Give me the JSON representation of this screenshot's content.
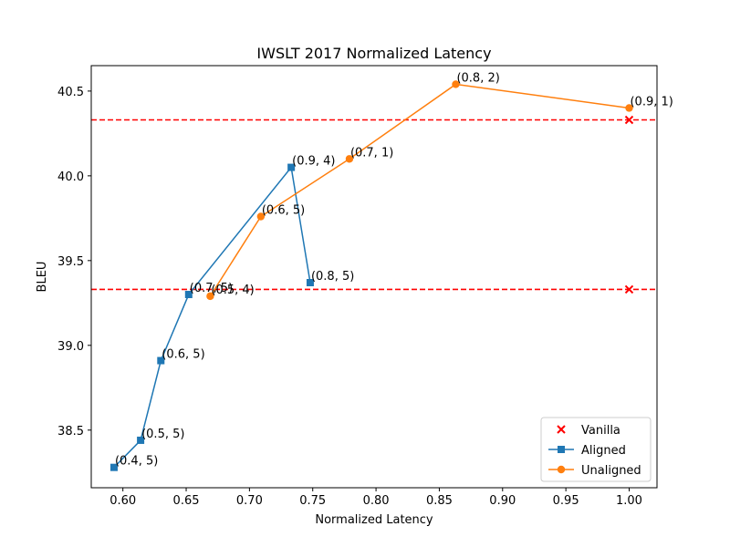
{
  "chart_data": {
    "type": "line",
    "title": "IWSLT 2017 Normalized Latency",
    "xlabel": "Normalized Latency",
    "ylabel": "BLEU",
    "xlim": [
      0.575,
      1.022
    ],
    "ylim": [
      38.16,
      40.65
    ],
    "xticks": [
      0.6,
      0.65,
      0.7,
      0.75,
      0.8,
      0.85,
      0.9,
      0.95,
      1.0
    ],
    "xtick_labels": [
      "0.60",
      "0.65",
      "0.70",
      "0.75",
      "0.80",
      "0.85",
      "0.90",
      "0.95",
      "1.00"
    ],
    "yticks": [
      38.5,
      39.0,
      39.5,
      40.0,
      40.5
    ],
    "ytick_labels": [
      "38.5",
      "39.0",
      "39.5",
      "40.0",
      "40.5"
    ],
    "grid": false,
    "legend_position": "lower-right",
    "reference_lines": [
      {
        "y": 39.33,
        "color": "#ff0000",
        "style": "dashed"
      },
      {
        "y": 40.33,
        "color": "#ff0000",
        "style": "dashed"
      }
    ],
    "series": [
      {
        "name": "Vanilla",
        "kind": "scatter",
        "marker": "x",
        "color": "#ff0000",
        "points": [
          {
            "x": 1.0,
            "y": 39.33
          },
          {
            "x": 1.0,
            "y": 40.33
          }
        ]
      },
      {
        "name": "Aligned",
        "kind": "line",
        "marker": "square",
        "color": "#1f77b4",
        "points": [
          {
            "x": 0.593,
            "y": 38.28,
            "label": "(0.4, 5)"
          },
          {
            "x": 0.614,
            "y": 38.44,
            "label": "(0.5, 5)"
          },
          {
            "x": 0.63,
            "y": 38.91,
            "label": "(0.6, 5)"
          },
          {
            "x": 0.652,
            "y": 39.3,
            "label": "(0.7, 5)"
          },
          {
            "x": 0.733,
            "y": 40.05,
            "label": "(0.9, 4)"
          },
          {
            "x": 0.748,
            "y": 39.37,
            "label": "(0.8, 5)"
          }
        ]
      },
      {
        "name": "Unaligned",
        "kind": "line",
        "marker": "circle",
        "color": "#ff7f0e",
        "points": [
          {
            "x": 0.669,
            "y": 39.29,
            "label": "(0.5, 4)"
          },
          {
            "x": 0.709,
            "y": 39.76,
            "label": "(0.6, 5)"
          },
          {
            "x": 0.779,
            "y": 40.1,
            "label": "(0.7, 1)"
          },
          {
            "x": 0.863,
            "y": 40.54,
            "label": "(0.8, 2)"
          },
          {
            "x": 1.0,
            "y": 40.4,
            "label": "(0.9, 1)"
          }
        ]
      }
    ]
  }
}
